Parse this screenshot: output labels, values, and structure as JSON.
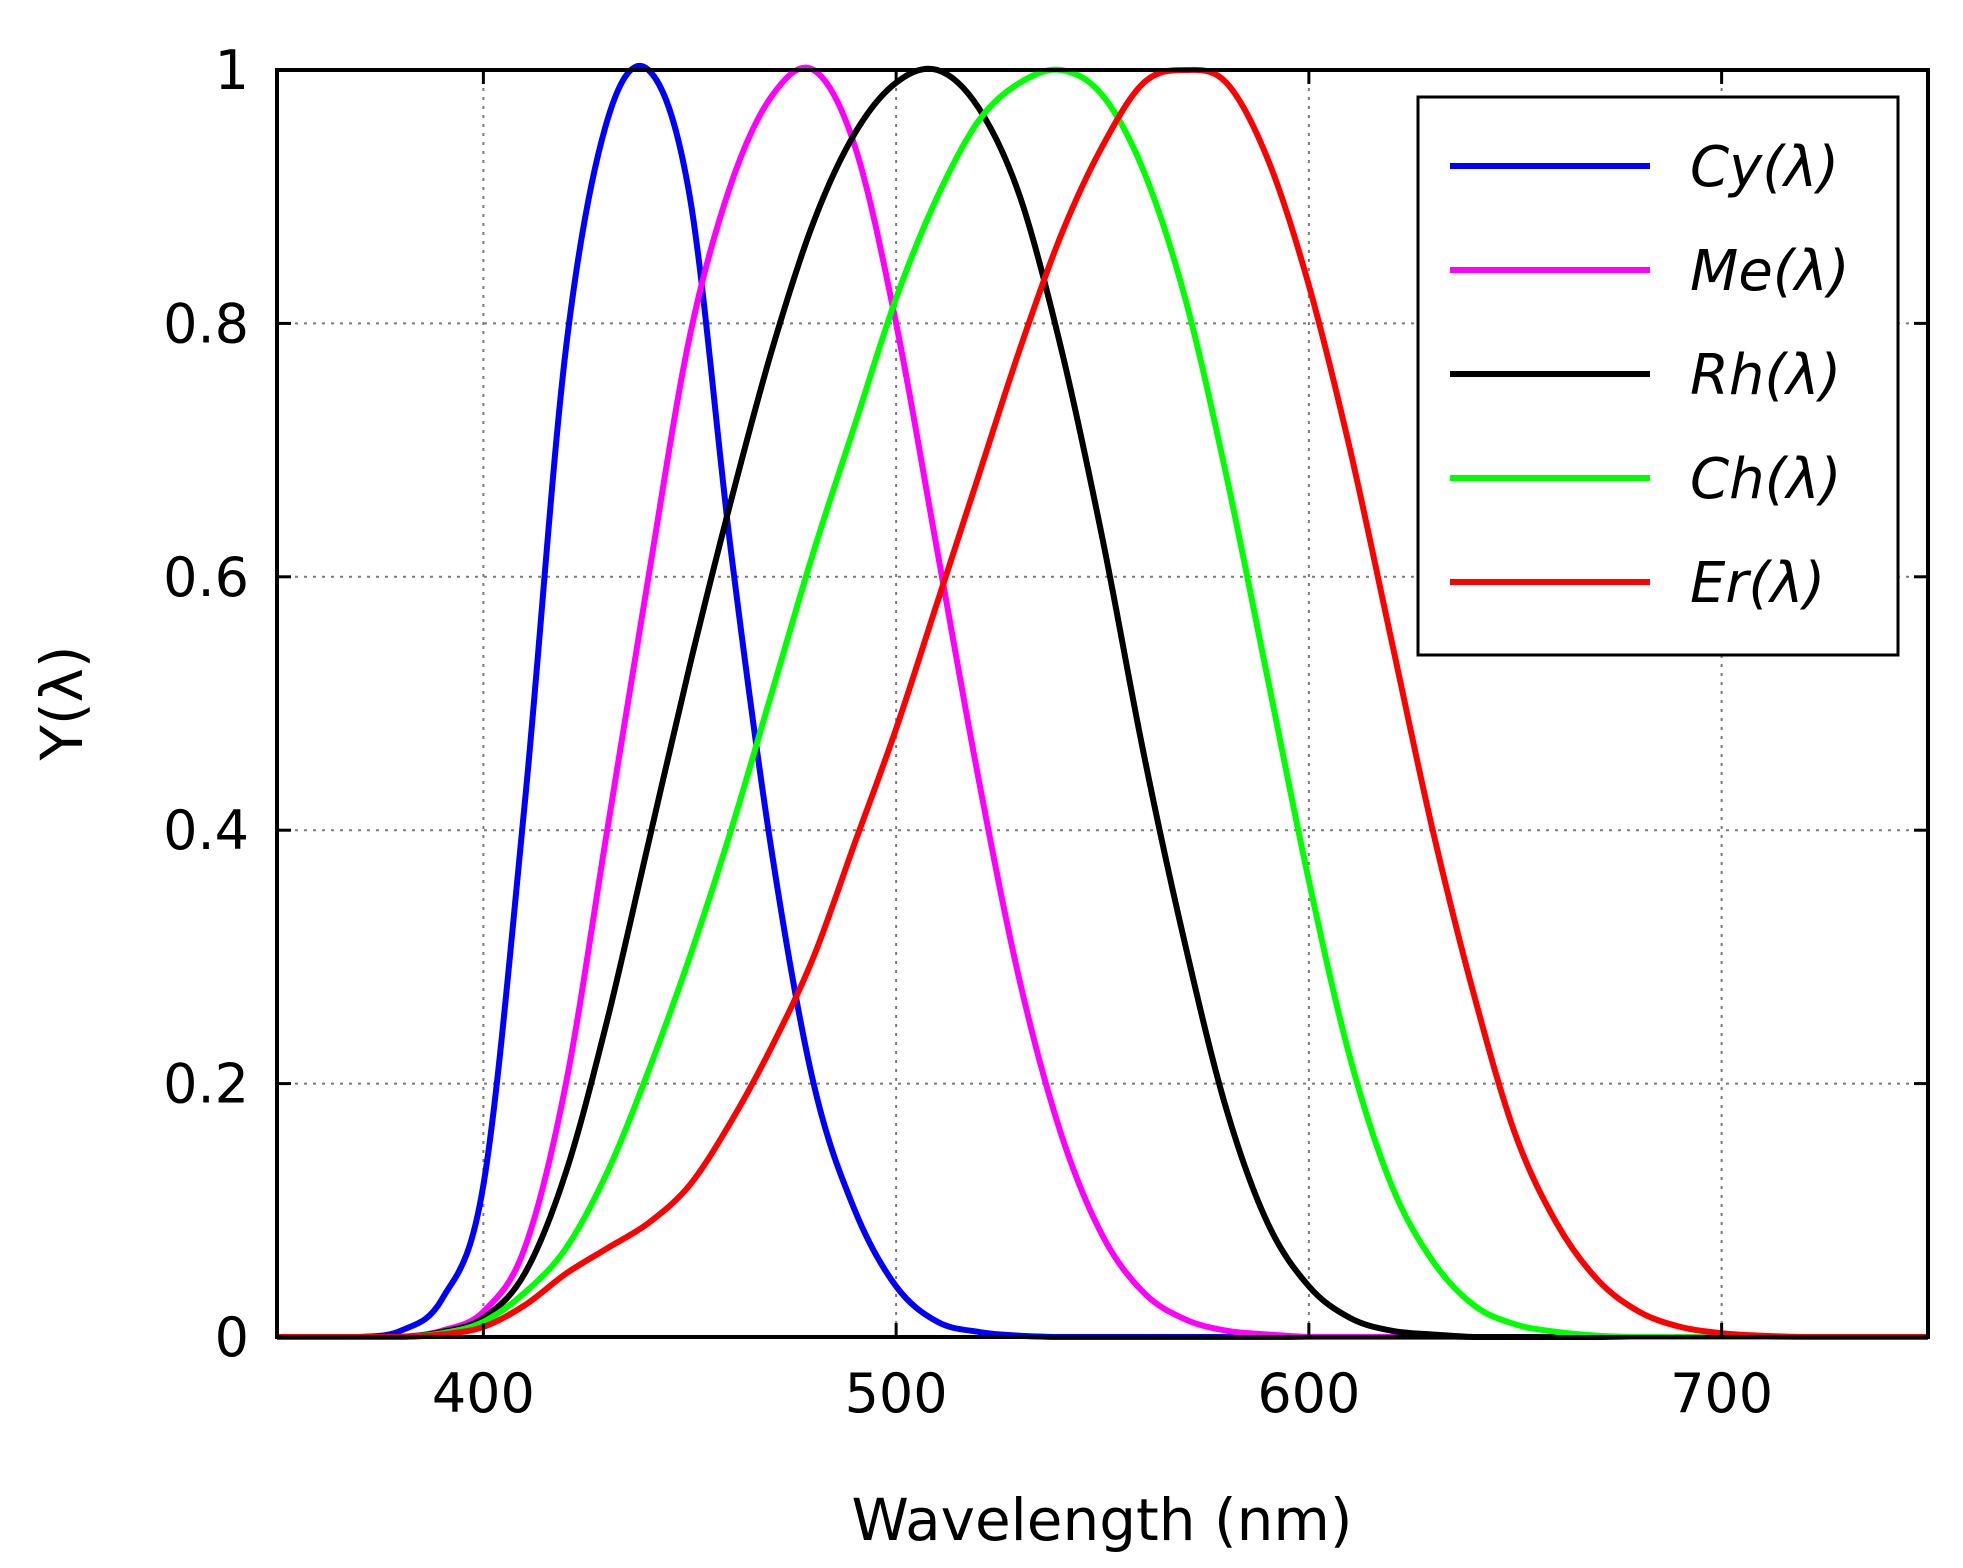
{
  "chart_data": {
    "type": "line",
    "title": "",
    "xlabel": "Wavelength (nm)",
    "ylabel": "Y(λ)",
    "xlim": [
      350,
      750
    ],
    "ylim": [
      0,
      1
    ],
    "xticks": [
      400,
      500,
      600,
      700
    ],
    "xtick_labels": [
      "400",
      "500",
      "600",
      "700"
    ],
    "yticks": [
      0,
      0.2,
      0.4,
      0.6,
      0.8,
      1
    ],
    "ytick_labels": [
      "0",
      "0.2",
      "0.4",
      "0.6",
      "0.8",
      "1"
    ],
    "grid": true,
    "legend_position": "top-right",
    "x": [
      350,
      360,
      370,
      380,
      390,
      400,
      410,
      420,
      430,
      440,
      450,
      460,
      470,
      480,
      490,
      500,
      510,
      520,
      530,
      540,
      550,
      560,
      570,
      580,
      590,
      600,
      610,
      620,
      630,
      640,
      650,
      660,
      670,
      680,
      690,
      700,
      710,
      720,
      730,
      740,
      750
    ],
    "series": [
      {
        "name": "Cy(λ)",
        "color": "#0000ff",
        "values": [
          0,
          0,
          0,
          0.005,
          0.03,
          0.12,
          0.42,
          0.78,
          0.96,
          1.0,
          0.9,
          0.62,
          0.38,
          0.2,
          0.1,
          0.04,
          0.012,
          0.004,
          0.001,
          0,
          0,
          0,
          0,
          0,
          0,
          0,
          0,
          0,
          0,
          0,
          0,
          0,
          0,
          0,
          0,
          0,
          0,
          0,
          0,
          0,
          0
        ]
      },
      {
        "name": "Me(λ)",
        "color": "#ff00ff",
        "values": [
          0,
          0,
          0,
          0,
          0.005,
          0.02,
          0.07,
          0.2,
          0.4,
          0.6,
          0.79,
          0.91,
          0.98,
          1.0,
          0.94,
          0.8,
          0.62,
          0.44,
          0.28,
          0.16,
          0.08,
          0.035,
          0.014,
          0.005,
          0.002,
          0,
          0,
          0,
          0,
          0,
          0,
          0,
          0,
          0,
          0,
          0,
          0,
          0,
          0,
          0,
          0
        ]
      },
      {
        "name": "Rh(λ)",
        "color": "#000000",
        "values": [
          0,
          0,
          0,
          0,
          0.004,
          0.015,
          0.05,
          0.13,
          0.25,
          0.39,
          0.53,
          0.66,
          0.78,
          0.88,
          0.95,
          0.99,
          1.0,
          0.97,
          0.9,
          0.78,
          0.63,
          0.46,
          0.31,
          0.18,
          0.09,
          0.04,
          0.015,
          0.005,
          0.002,
          0,
          0,
          0,
          0,
          0,
          0,
          0,
          0,
          0,
          0,
          0,
          0
        ]
      },
      {
        "name": "Ch(λ)",
        "color": "#00ff00",
        "values": [
          0,
          0,
          0,
          0,
          0.003,
          0.012,
          0.035,
          0.07,
          0.13,
          0.21,
          0.3,
          0.4,
          0.51,
          0.62,
          0.72,
          0.82,
          0.9,
          0.96,
          0.99,
          1.0,
          0.98,
          0.92,
          0.82,
          0.68,
          0.52,
          0.36,
          0.22,
          0.12,
          0.06,
          0.025,
          0.01,
          0.004,
          0.001,
          0,
          0,
          0,
          0,
          0,
          0,
          0,
          0
        ]
      },
      {
        "name": "Er(λ)",
        "color": "#ff0000",
        "values": [
          0,
          0,
          0,
          0,
          0.002,
          0.008,
          0.025,
          0.05,
          0.07,
          0.09,
          0.12,
          0.17,
          0.23,
          0.3,
          0.39,
          0.48,
          0.58,
          0.68,
          0.78,
          0.87,
          0.94,
          0.99,
          1.0,
          0.99,
          0.93,
          0.83,
          0.7,
          0.55,
          0.4,
          0.27,
          0.16,
          0.09,
          0.045,
          0.02,
          0.008,
          0.003,
          0.001,
          0,
          0,
          0,
          0
        ]
      }
    ]
  }
}
